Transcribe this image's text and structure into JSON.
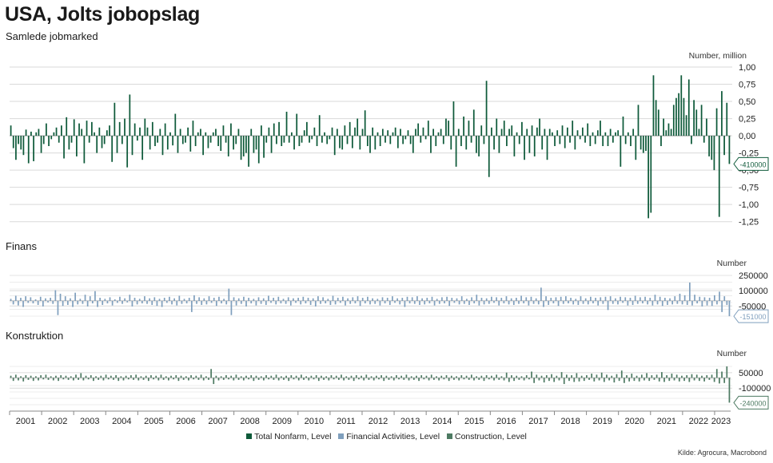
{
  "title": "USA, Jolts jobopslag",
  "subtitle": "Samlede jobmarked",
  "source": "Kilde: Agrocura, Macrobond",
  "colors": {
    "total": "#0e5a3a",
    "finans": "#7f9fbd",
    "konstruktion": "#4d7a62",
    "grid": "#d9d9d9"
  },
  "legend": [
    "Total Nonfarm, Level",
    "Financial Activities, Level",
    "Construction, Level"
  ],
  "x_axis": {
    "labels": [
      "2001",
      "2002",
      "2003",
      "2004",
      "2005",
      "2006",
      "2007",
      "2008",
      "2009",
      "2010",
      "2011",
      "2012",
      "2013",
      "2014",
      "2015",
      "2016",
      "2017",
      "2018",
      "2019",
      "2020",
      "2021",
      "2022",
      "2023"
    ]
  },
  "chart_data": [
    {
      "type": "bar",
      "name": "total",
      "panel_label": "",
      "unit": "Number, million",
      "ylim": [
        -1.3,
        1.0
      ],
      "yticks": [
        1.0,
        0.75,
        0.5,
        0.25,
        0.0,
        -0.25,
        -0.5,
        -0.75,
        -1.0,
        -1.25
      ],
      "tick_labels": [
        "1,00",
        "0,75",
        "0,50",
        "0,25",
        "0,00",
        "-0,25",
        "-0,50",
        "-0,75",
        "-1,00",
        "-1,25"
      ],
      "last_value_label": "-410000",
      "last_value": -0.41,
      "series": [
        {
          "name": "Total Nonfarm, Level",
          "values": [
            0.15,
            -0.18,
            -0.35,
            -0.12,
            -0.2,
            -0.28,
            0.09,
            -0.4,
            0.06,
            -0.37,
            0.05,
            0.1,
            -0.25,
            -0.12,
            0.18,
            -0.15,
            -0.05,
            0.05,
            0.12,
            -0.1,
            0.15,
            -0.33,
            0.27,
            -0.2,
            -0.1,
            0.24,
            -0.3,
            0.18,
            0.1,
            -0.4,
            0.22,
            -0.1,
            0.2,
            0.05,
            -0.25,
            0.12,
            -0.18,
            -0.12,
            0.08,
            0.15,
            -0.38,
            0.48,
            -0.25,
            0.2,
            -0.12,
            0.25,
            -0.46,
            0.6,
            -0.28,
            0.18,
            -0.07,
            0.12,
            -0.35,
            0.25,
            0.12,
            -0.2,
            0.2,
            -0.15,
            -0.1,
            0.1,
            -0.28,
            0.18,
            -0.2,
            0.05,
            -0.14,
            0.32,
            -0.25,
            0.1,
            -0.12,
            -0.1,
            0.12,
            -0.23,
            0.22,
            -0.15,
            0.05,
            0.1,
            -0.28,
            0.05,
            -0.18,
            -0.1,
            0.05,
            0.1,
            -0.15,
            -0.22,
            0.15,
            -0.1,
            -0.3,
            0.18,
            -0.2,
            -0.12,
            0.1,
            -0.35,
            -0.3,
            -0.25,
            -0.45,
            0.1,
            -0.25,
            -0.2,
            -0.4,
            0.15,
            -0.32,
            -0.1,
            0.12,
            -0.25,
            0.18,
            -0.12,
            0.2,
            -0.15,
            -0.1,
            0.35,
            -0.1,
            0.05,
            -0.2,
            0.32,
            -0.15,
            -0.1,
            0.08,
            0.2,
            -0.1,
            -0.05,
            0.12,
            -0.15,
            0.3,
            -0.1,
            0.05,
            -0.12,
            -0.05,
            0.12,
            -0.28,
            0.1,
            -0.18,
            -0.2,
            0.15,
            -0.12,
            0.2,
            -0.18,
            0.12,
            0.25,
            -0.2,
            0.1,
            0.37,
            -0.15,
            -0.25,
            0.12,
            -0.2,
            0.05,
            -0.15,
            0.1,
            -0.1,
            0.08,
            -0.12,
            0.05,
            0.12,
            -0.18,
            0.1,
            -0.12,
            -0.05,
            0.08,
            -0.12,
            -0.25,
            0.1,
            0.18,
            -0.1,
            0.12,
            -0.05,
            0.22,
            -0.25,
            0.1,
            -0.15,
            0.05,
            0.1,
            -0.12,
            0.25,
            0.22,
            -0.2,
            0.5,
            -0.45,
            0.1,
            -0.15,
            0.28,
            -0.2,
            0.22,
            -0.1,
            0.38,
            -0.25,
            -0.3,
            0.15,
            -0.12,
            0.8,
            -0.6,
            0.12,
            -0.2,
            0.25,
            -0.25,
            0.1,
            0.22,
            -0.15,
            0.1,
            0.15,
            -0.3,
            0.05,
            -0.12,
            0.2,
            -0.35,
            0.1,
            -0.25,
            0.15,
            -0.3,
            0.12,
            0.25,
            -0.2,
            0.1,
            -0.35,
            0.1,
            0.05,
            -0.15,
            0.08,
            -0.12,
            0.15,
            -0.18,
            0.12,
            -0.1,
            0.22,
            -0.2,
            0.08,
            -0.05,
            0.12,
            -0.1,
            0.18,
            -0.15,
            0.05,
            -0.12,
            0.08,
            0.22,
            -0.15,
            0.05,
            -0.15,
            0.1,
            -0.1,
            0.05,
            0.08,
            -0.45,
            0.28,
            -0.12,
            0.05,
            -0.15,
            0.1,
            -0.35,
            0.45,
            -0.2,
            -0.25,
            -0.22,
            -1.2,
            -1.12,
            0.88,
            0.52,
            0.38,
            -0.15,
            0.25,
            0.08,
            0.18,
            0.1,
            0.45,
            0.55,
            0.62,
            0.88,
            0.55,
            0.3,
            0.82,
            -0.12,
            0.52,
            0.38,
            0.1,
            0.45,
            -0.1,
            0.25,
            -0.3,
            -0.35,
            -0.5,
            0.4,
            -1.18,
            0.65,
            -0.28,
            0.48,
            -0.41
          ]
        }
      ]
    },
    {
      "type": "bar",
      "name": "finans",
      "panel_label": "Finans",
      "unit": "Number",
      "ylim": [
        -150000,
        250000
      ],
      "yticks": [
        250000,
        100000,
        -50000
      ],
      "tick_labels": [
        "250000",
        "100000",
        "-50000"
      ],
      "last_value_label": "-151000",
      "last_value": -151000,
      "series": [
        {
          "name": "Financial Activities, Level",
          "values": [
            20000,
            -35000,
            50000,
            -45000,
            30000,
            -60000,
            45000,
            -20000,
            35000,
            -25000,
            15000,
            -40000,
            40000,
            -55000,
            25000,
            -15000,
            30000,
            -30000,
            105000,
            -140000,
            70000,
            -50000,
            45000,
            -40000,
            25000,
            -60000,
            80000,
            -35000,
            20000,
            -30000,
            60000,
            -55000,
            45000,
            -25000,
            95000,
            -60000,
            30000,
            -40000,
            20000,
            -25000,
            35000,
            -45000,
            15000,
            -20000,
            40000,
            -30000,
            25000,
            -15000,
            60000,
            -55000,
            30000,
            -35000,
            20000,
            -25000,
            45000,
            -30000,
            25000,
            -40000,
            35000,
            -50000,
            20000,
            -60000,
            30000,
            -20000,
            40000,
            -35000,
            25000,
            -45000,
            50000,
            -30000,
            20000,
            -25000,
            30000,
            -110000,
            55000,
            -30000,
            35000,
            -40000,
            25000,
            -35000,
            45000,
            -20000,
            30000,
            -50000,
            40000,
            -25000,
            20000,
            -35000,
            120000,
            -140000,
            35000,
            -45000,
            25000,
            -30000,
            40000,
            -55000,
            30000,
            -25000,
            20000,
            -45000,
            35000,
            -30000,
            25000,
            -40000,
            50000,
            -20000,
            30000,
            -35000,
            40000,
            -25000,
            20000,
            -30000,
            35000,
            -45000,
            25000,
            -20000,
            30000,
            -35000,
            40000,
            -25000,
            30000,
            -40000,
            25000,
            -55000,
            45000,
            -30000,
            35000,
            -25000,
            20000,
            -40000,
            50000,
            -35000,
            30000,
            -20000,
            40000,
            -45000,
            25000,
            -30000,
            35000,
            -25000,
            45000,
            -50000,
            30000,
            -25000,
            40000,
            -35000,
            25000,
            -30000,
            20000,
            -45000,
            35000,
            -25000,
            30000,
            -40000,
            45000,
            -20000,
            25000,
            -35000,
            30000,
            -60000,
            40000,
            -25000,
            35000,
            -30000,
            45000,
            -40000,
            25000,
            -35000,
            30000,
            -25000,
            40000,
            -45000,
            20000,
            -30000,
            35000,
            -25000,
            40000,
            -50000,
            30000,
            -20000,
            25000,
            -35000,
            45000,
            -30000,
            20000,
            -40000,
            35000,
            -25000,
            60000,
            -45000,
            30000,
            -35000,
            25000,
            -30000,
            40000,
            -20000,
            35000,
            -45000,
            30000,
            -25000,
            45000,
            -35000,
            25000,
            -40000,
            30000,
            -30000,
            50000,
            -25000,
            35000,
            -45000,
            40000,
            -30000,
            25000,
            -35000,
            130000,
            -60000,
            45000,
            -40000,
            30000,
            -25000,
            35000,
            -50000,
            40000,
            -30000,
            45000,
            -25000,
            30000,
            -35000,
            20000,
            -40000,
            45000,
            -30000,
            25000,
            -35000,
            40000,
            -25000,
            30000,
            -45000,
            35000,
            -30000,
            40000,
            -90000,
            45000,
            -30000,
            25000,
            -35000,
            40000,
            -20000,
            35000,
            -45000,
            30000,
            -40000,
            50000,
            -30000,
            35000,
            -25000,
            40000,
            -35000,
            30000,
            -45000,
            60000,
            -35000,
            40000,
            -50000,
            30000,
            -40000,
            25000,
            -35000,
            45000,
            -30000,
            70000,
            -35000,
            55000,
            -40000,
            180000,
            -45000,
            60000,
            -25000,
            40000,
            -55000,
            35000,
            -45000,
            30000,
            -50000,
            55000,
            -35000,
            90000,
            -110000,
            45000,
            -40000,
            -151000
          ]
        }
      ]
    },
    {
      "type": "bar",
      "name": "konstruktion",
      "panel_label": "Konstruktion",
      "unit": "Number",
      "ylim": [
        -260000,
        110000
      ],
      "yticks": [
        50000,
        -100000
      ],
      "tick_labels": [
        "50000",
        "-100000"
      ],
      "last_value_label": "-240000",
      "last_value": -240000,
      "series": [
        {
          "name": "Construction, Level",
          "values": [
            20000,
            -30000,
            30000,
            -25000,
            15000,
            -35000,
            25000,
            -20000,
            20000,
            -30000,
            15000,
            -25000,
            25000,
            -15000,
            30000,
            -20000,
            15000,
            -25000,
            20000,
            -30000,
            25000,
            -15000,
            20000,
            -20000,
            15000,
            -25000,
            30000,
            -20000,
            45000,
            -25000,
            20000,
            -15000,
            25000,
            -30000,
            15000,
            -20000,
            20000,
            -25000,
            30000,
            -15000,
            20000,
            -20000,
            25000,
            -30000,
            15000,
            -25000,
            20000,
            -15000,
            25000,
            -20000,
            30000,
            -25000,
            15000,
            -20000,
            20000,
            -30000,
            25000,
            -15000,
            20000,
            -25000,
            30000,
            -20000,
            15000,
            -25000,
            20000,
            -15000,
            25000,
            -30000,
            20000,
            -20000,
            15000,
            -25000,
            25000,
            -15000,
            20000,
            -20000,
            30000,
            -25000,
            15000,
            -20000,
            85000,
            -60000,
            20000,
            -25000,
            15000,
            -20000,
            25000,
            -15000,
            20000,
            -25000,
            30000,
            -20000,
            15000,
            -25000,
            20000,
            -15000,
            25000,
            -30000,
            20000,
            -20000,
            15000,
            -25000,
            25000,
            -15000,
            20000,
            -20000,
            30000,
            -25000,
            15000,
            -20000,
            20000,
            -30000,
            25000,
            -15000,
            20000,
            -25000,
            30000,
            -20000,
            15000,
            -25000,
            20000,
            -15000,
            25000,
            -30000,
            20000,
            -20000,
            15000,
            -25000,
            25000,
            -15000,
            20000,
            -20000,
            30000,
            -25000,
            15000,
            -20000,
            20000,
            -30000,
            25000,
            -15000,
            20000,
            -25000,
            30000,
            -20000,
            15000,
            -25000,
            20000,
            -15000,
            25000,
            -30000,
            20000,
            -20000,
            15000,
            -25000,
            25000,
            -15000,
            20000,
            -20000,
            30000,
            -25000,
            15000,
            -20000,
            20000,
            -30000,
            25000,
            -15000,
            20000,
            -25000,
            30000,
            -20000,
            15000,
            -25000,
            20000,
            -15000,
            25000,
            -30000,
            20000,
            -20000,
            15000,
            -25000,
            25000,
            -15000,
            20000,
            -20000,
            30000,
            -25000,
            15000,
            -20000,
            20000,
            -30000,
            25000,
            -15000,
            20000,
            -25000,
            30000,
            -20000,
            15000,
            -25000,
            50000,
            -40000,
            25000,
            -30000,
            20000,
            -20000,
            15000,
            -25000,
            25000,
            -15000,
            60000,
            -50000,
            30000,
            -25000,
            20000,
            -45000,
            25000,
            -30000,
            35000,
            -40000,
            20000,
            -25000,
            55000,
            -60000,
            30000,
            -30000,
            25000,
            -40000,
            45000,
            -35000,
            20000,
            -30000,
            25000,
            -20000,
            40000,
            -35000,
            30000,
            -25000,
            50000,
            -40000,
            30000,
            -25000,
            20000,
            -45000,
            35000,
            -30000,
            70000,
            -50000,
            25000,
            -35000,
            40000,
            -30000,
            20000,
            -35000,
            30000,
            -25000,
            45000,
            -30000,
            25000,
            -20000,
            30000,
            -35000,
            55000,
            -40000,
            25000,
            -30000,
            40000,
            -25000,
            30000,
            -35000,
            20000,
            -30000,
            25000,
            -40000,
            35000,
            -25000,
            30000,
            -30000,
            20000,
            -35000,
            25000,
            -20000,
            30000,
            -40000,
            85000,
            -55000,
            60000,
            -50000,
            110000,
            -240000
          ]
        }
      ]
    }
  ]
}
